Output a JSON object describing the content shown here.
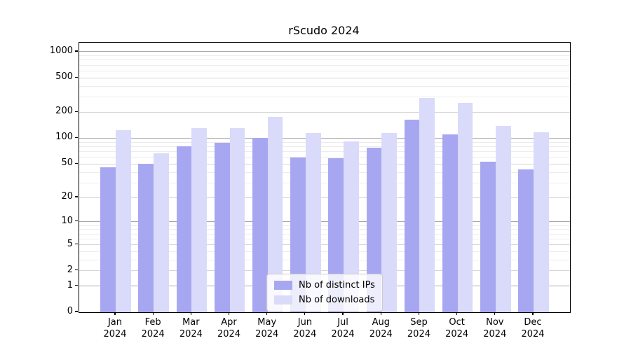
{
  "chart_data": {
    "type": "bar",
    "title": "rScudo 2024",
    "categories": [
      "Jan",
      "Feb",
      "Mar",
      "Apr",
      "May",
      "Jun",
      "Jul",
      "Aug",
      "Sep",
      "Oct",
      "Nov",
      "Dec"
    ],
    "category_year": "2024",
    "series": [
      {
        "name": "Nb of distinct IPs",
        "color": "#a7a7f1",
        "values": [
          46,
          50,
          80,
          89,
          100,
          60,
          58,
          77,
          165,
          110,
          53,
          43
        ]
      },
      {
        "name": "Nb of downloads",
        "color": "#dadafa",
        "values": [
          125,
          67,
          130,
          130,
          178,
          116,
          92,
          116,
          290,
          257,
          140,
          117
        ]
      }
    ],
    "xlabel": "",
    "ylabel": "",
    "yscale": "log1p",
    "yticks": [
      0,
      1,
      2,
      5,
      10,
      20,
      50,
      100,
      200,
      500,
      1000
    ],
    "ylim": [
      0,
      1270
    ],
    "grid": "both",
    "legend_position": "lower-center",
    "grid_colors": {
      "major": "#a9a9a9",
      "mid": "#d6d6d6",
      "minor": "#ececec"
    }
  }
}
